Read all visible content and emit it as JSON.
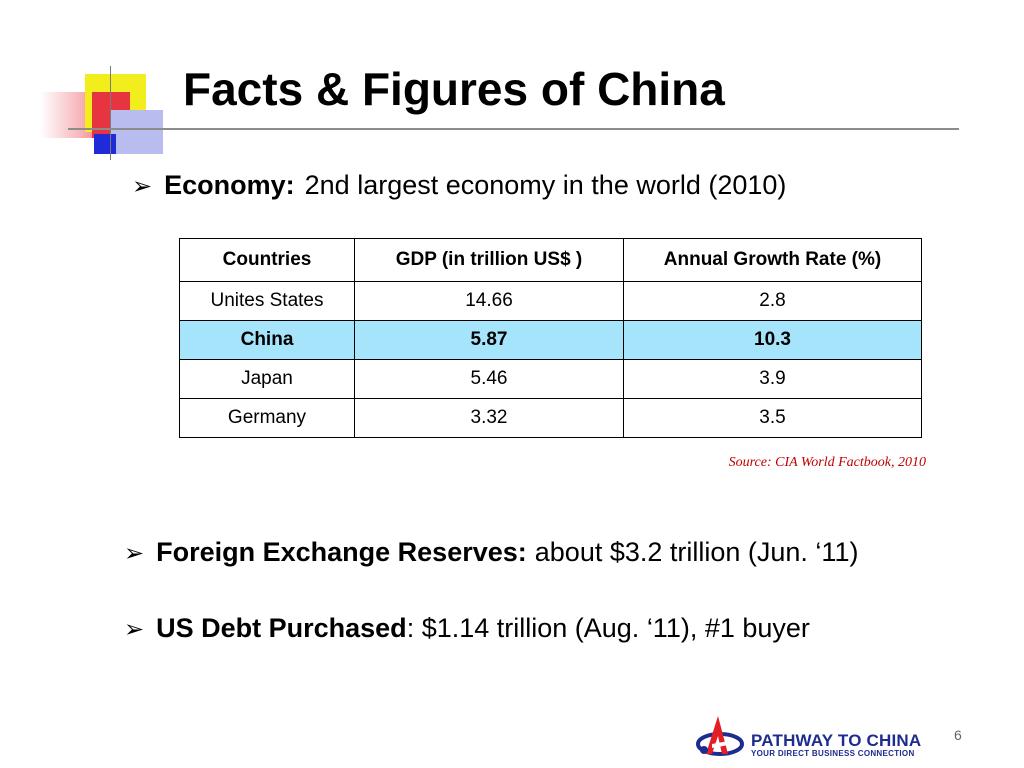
{
  "slide": {
    "title": "Facts & Figures of China",
    "page_number": "6"
  },
  "economy": {
    "arrow": "➢",
    "label": "Economy:",
    "text": "2nd largest economy in the world (2010)"
  },
  "table": {
    "headers": [
      "Countries",
      "GDP (in trillion US$ )",
      "Annual Growth Rate (%)"
    ],
    "rows": [
      [
        "Unites States",
        "14.66",
        "2.8"
      ],
      [
        "China",
        "5.87",
        "10.3"
      ],
      [
        "Japan",
        "5.46",
        "3.9"
      ],
      [
        "Germany",
        "3.32",
        "3.5"
      ]
    ],
    "highlight_color": "#a5e4fb",
    "source": "Source: CIA World Factbook, 2010"
  },
  "reserves": {
    "arrow": "➢",
    "label": "Foreign Exchange Reserves:",
    "text": "about $3.2 trillion (Jun. ‘11)"
  },
  "debt": {
    "arrow": "➢",
    "label": "US Debt Purchased",
    "text": ": $1.14 trillion (Aug. ‘11), #1 buyer"
  },
  "logo": {
    "name": "PATHWAY TO CHINA",
    "tagline": "YOUR DIRECT BUSINESS CONNECTION",
    "icon": "pathway-logo-icon",
    "brand_color": "#1d2c8f",
    "accent_color": "#e31e24"
  }
}
